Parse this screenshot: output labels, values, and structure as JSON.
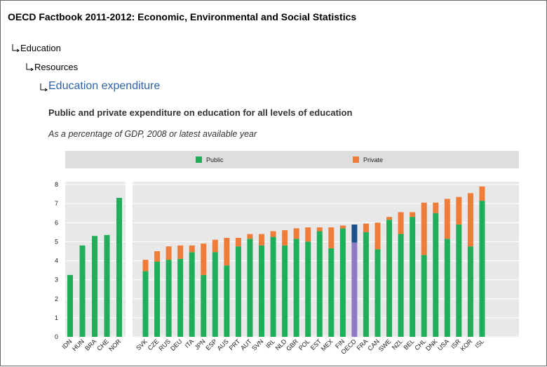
{
  "page": {
    "title": "OECD Factbook 2011-2012: Economic, Environmental and Social Statistics",
    "breadcrumb": [
      "Education",
      "Resources",
      "Education expenditure"
    ]
  },
  "colors": {
    "public": "#1fae5a",
    "private": "#f07c3a",
    "oecd_public": "#8e79c4",
    "oecd_private": "#1d4f8c",
    "plot_bg": "#e8e8e8",
    "legend_bg": "#dedede",
    "link": "#2e63a9"
  },
  "chart_data": {
    "type": "bar",
    "stacked": true,
    "title": "Public and private expenditure on education for all levels of education",
    "subtitle": "As a percentage of GDP, 2008 or latest available year",
    "xlabel": "",
    "ylabel": "",
    "ylim": [
      0,
      8
    ],
    "yticks": [
      0,
      1,
      2,
      3,
      4,
      5,
      6,
      7,
      8
    ],
    "legend_position": "top",
    "categories": [
      "IDN",
      "HUN",
      "BRA",
      "CHE",
      "NOR",
      "SVK",
      "CZE",
      "RUS",
      "DEU",
      "ITA",
      "JPN",
      "ESP",
      "AUS",
      "PRT",
      "AUT",
      "SVN",
      "IRL",
      "NLD",
      "GBR",
      "POL",
      "EST",
      "MEX",
      "FIN",
      "OECD",
      "FRA",
      "CAN",
      "SWE",
      "NZL",
      "BEL",
      "CHL",
      "DNK",
      "USA",
      "ISR",
      "KOR",
      "ISL"
    ],
    "group_break_after": "NOR",
    "highlight": "OECD",
    "series": [
      {
        "name": "Public",
        "values": [
          3.25,
          4.8,
          5.3,
          5.35,
          7.3,
          3.45,
          3.95,
          4.05,
          4.1,
          4.45,
          3.25,
          4.45,
          3.75,
          4.75,
          5.15,
          4.8,
          5.25,
          4.8,
          5.15,
          5.0,
          5.55,
          4.65,
          5.7,
          4.95,
          5.5,
          4.6,
          6.15,
          5.4,
          6.3,
          4.3,
          6.5,
          5.15,
          5.9,
          4.75,
          7.15
        ]
      },
      {
        "name": "Private",
        "values": [
          0.0,
          0.0,
          0.0,
          0.0,
          0.0,
          0.6,
          0.55,
          0.7,
          0.7,
          0.35,
          1.65,
          0.65,
          1.45,
          0.45,
          0.25,
          0.6,
          0.3,
          0.8,
          0.55,
          0.75,
          0.2,
          1.1,
          0.15,
          0.95,
          0.45,
          1.4,
          0.15,
          1.15,
          0.25,
          2.75,
          0.55,
          2.1,
          1.45,
          2.8,
          0.75
        ]
      }
    ]
  }
}
